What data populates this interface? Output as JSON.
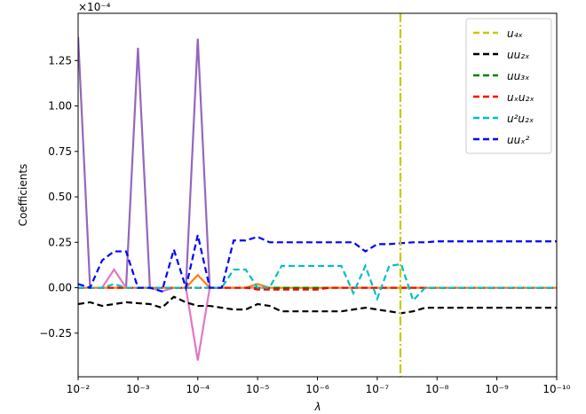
{
  "chart_data": {
    "type": "line",
    "log_x": true,
    "x_label": "λ",
    "y_label": "Coefficients",
    "y_scale_label": "×10⁻⁴",
    "xlim": [
      0.01,
      1e-10
    ],
    "ylim": [
      -0.49,
      1.51
    ],
    "xticks": [
      {
        "value": 0.01,
        "label": "10⁻²"
      },
      {
        "value": 0.001,
        "label": "10⁻³"
      },
      {
        "value": 0.0001,
        "label": "10⁻⁴"
      },
      {
        "value": 1e-05,
        "label": "10⁻⁵"
      },
      {
        "value": 1e-06,
        "label": "10⁻⁶"
      },
      {
        "value": 1e-07,
        "label": "10⁻⁷"
      },
      {
        "value": 1e-08,
        "label": "10⁻⁸"
      },
      {
        "value": 1e-09,
        "label": "10⁻⁹"
      },
      {
        "value": 1e-10,
        "label": "10⁻¹⁰"
      }
    ],
    "yticks": [
      {
        "value": -0.25,
        "label": "−0.25"
      },
      {
        "value": 0,
        "label": "0.00"
      },
      0.25,
      {
        "value": 0.5,
        "label": "0.50"
      },
      0.75,
      {
        "value": 1,
        "label": "1.00"
      },
      1.25
    ],
    "legend": "upper right",
    "vline": {
      "x": 4.1e-08,
      "color": "#c8c800"
    },
    "x": [
      0.01,
      0.00631,
      0.00398,
      0.00251,
      0.00158,
      0.001,
      0.000631,
      0.000398,
      0.000251,
      0.000158,
      0.0001,
      6.31e-05,
      3.98e-05,
      2.51e-05,
      1.58e-05,
      1e-05,
      6.31e-06,
      3.98e-06,
      2.51e-06,
      1.58e-06,
      1e-06,
      6.31e-07,
      3.98e-07,
      2.51e-07,
      1.58e-07,
      1e-07,
      6.31e-08,
      3.98e-08,
      2.51e-08,
      1.58e-08,
      1e-08,
      6.31e-09,
      3.98e-09,
      2.51e-09,
      1.58e-09,
      1e-09,
      6.31e-10,
      3.98e-10,
      2.51e-10,
      1.58e-10,
      1e-10
    ],
    "series": [
      {
        "color": "#9467bd",
        "values": [
          1.38,
          0,
          0,
          0,
          0,
          1.32,
          0,
          0,
          0,
          0,
          1.37,
          0,
          0,
          0,
          0,
          0,
          0,
          0,
          0,
          0,
          0,
          0,
          0,
          0,
          0,
          0,
          0,
          0,
          0,
          0,
          0,
          0,
          0,
          0,
          0,
          0,
          0,
          0,
          0,
          0,
          0
        ]
      },
      {
        "color": "#e377c2",
        "values": [
          0,
          0,
          0,
          0.1,
          0,
          0,
          0,
          -0.02,
          0,
          0,
          -0.4,
          0,
          0,
          0,
          0,
          0,
          0,
          0,
          0,
          0,
          0,
          0,
          0,
          0,
          0,
          0,
          0,
          0,
          0,
          0,
          0,
          0,
          0,
          0,
          0,
          0,
          0,
          0,
          0,
          0,
          0
        ]
      },
      {
        "color": "#ff7f0e",
        "values": [
          0,
          0,
          0,
          0,
          0,
          0,
          0,
          0,
          0,
          0,
          0.07,
          0,
          0,
          0,
          0,
          0.02,
          0,
          0,
          0,
          0,
          0,
          0,
          0,
          0,
          0,
          0,
          0,
          0,
          0,
          0,
          0,
          0,
          0,
          0,
          0,
          0,
          0,
          0,
          0,
          0,
          0
        ]
      },
      {
        "name": "u₄ₓ",
        "color": "#c8c800",
        "dashed": true,
        "values": [
          0,
          0,
          0,
          0,
          0,
          0,
          0,
          0,
          0,
          0,
          0,
          0,
          0,
          0,
          0,
          0,
          0,
          0,
          0,
          0,
          0,
          0,
          0,
          0,
          0,
          0,
          0,
          0,
          0,
          0,
          0,
          0,
          0,
          0,
          0,
          0,
          0,
          0,
          0,
          0,
          0
        ]
      },
      {
        "name": "uu₂ₓ",
        "color": "#000000",
        "dashed": true,
        "values": [
          -0.09,
          -0.08,
          -0.1,
          -0.09,
          -0.08,
          -0.085,
          -0.09,
          -0.11,
          -0.05,
          -0.08,
          -0.1,
          -0.1,
          -0.11,
          -0.12,
          -0.12,
          -0.09,
          -0.1,
          -0.13,
          -0.13,
          -0.13,
          -0.13,
          -0.13,
          -0.13,
          -0.12,
          -0.11,
          -0.12,
          -0.13,
          -0.14,
          -0.13,
          -0.11,
          -0.11,
          -0.11,
          -0.11,
          -0.11,
          -0.11,
          -0.11,
          -0.11,
          -0.11,
          -0.11,
          -0.11,
          -0.11
        ]
      },
      {
        "name": "uu₃ₓ",
        "color": "#008000",
        "dashed": true,
        "values": [
          0,
          0,
          0,
          0,
          0,
          0,
          0,
          0,
          0,
          0,
          0,
          0,
          0,
          0,
          0,
          0,
          0,
          0,
          0,
          0,
          0,
          0,
          0,
          0,
          0,
          0,
          0,
          0,
          0,
          0,
          0,
          0,
          0,
          0,
          0,
          0,
          0,
          0,
          0,
          0,
          0
        ]
      },
      {
        "name": "uₓu₂ₓ",
        "color": "#ff0000",
        "dashed": true,
        "values": [
          0,
          0,
          0,
          0,
          0,
          0,
          0,
          0,
          0,
          0,
          0,
          0,
          0,
          0,
          0,
          -0.01,
          -0.01,
          -0.01,
          -0.01,
          -0.01,
          -0.01,
          0,
          0,
          0,
          0,
          0,
          0,
          0,
          0,
          0,
          0,
          0,
          0,
          0,
          0,
          0,
          0,
          0,
          0,
          0,
          0
        ]
      },
      {
        "name": "u²u₂ₓ",
        "color": "#00bfbf",
        "dashed": true,
        "values": [
          0,
          0,
          0,
          0.02,
          0,
          0,
          0,
          0,
          0,
          0,
          0,
          0,
          0,
          0.1,
          0.1,
          0,
          0,
          0.12,
          0.12,
          0.12,
          0.12,
          0.12,
          0.12,
          -0.03,
          0.12,
          -0.06,
          0.12,
          0.13,
          -0.07,
          0,
          0,
          0,
          0,
          0,
          0,
          0,
          0,
          0,
          0,
          0,
          0
        ]
      },
      {
        "name": "uuₓ²",
        "color": "#0000ff",
        "dashed": true,
        "values": [
          0.02,
          0,
          0.15,
          0.2,
          0.2,
          0,
          0,
          -0.02,
          0.21,
          0,
          0.29,
          0,
          0,
          0.26,
          0.26,
          0.28,
          0.25,
          0.25,
          0.25,
          0.25,
          0.25,
          0.25,
          0.25,
          0.25,
          0.2,
          0.24,
          0.24,
          0.245,
          0.25,
          0.25,
          0.255,
          0.255,
          0.255,
          0.255,
          0.255,
          0.255,
          0.255,
          0.255,
          0.255,
          0.255,
          0.255
        ]
      }
    ]
  }
}
